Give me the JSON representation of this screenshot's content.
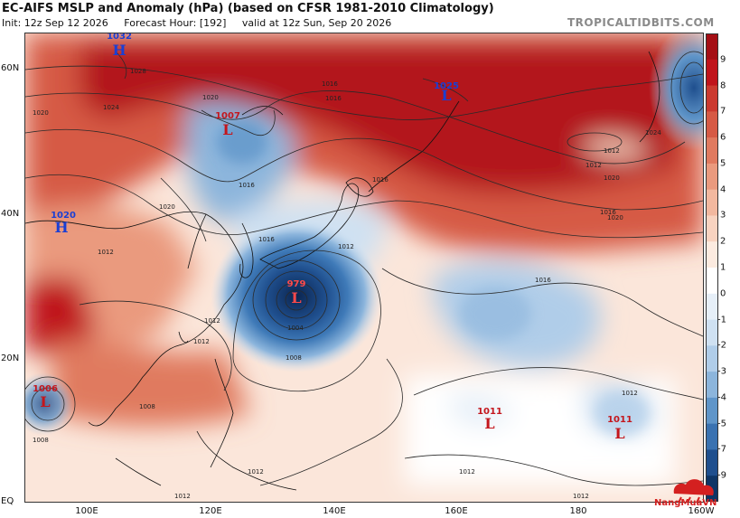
{
  "header": {
    "title": "EC-AIFS MSLP and Anomaly (hPa) (based on CFSR 1981-2010 Climatology)",
    "init": "Init: 12z Sep 12 2026",
    "forecast_hour": "Forecast Hour: [192]",
    "valid": "valid at 12z Sun, Sep 20 2026",
    "brand": "TROPICALTIDBITS.COM"
  },
  "map": {
    "lat_labels": [
      "60N",
      "40N",
      "20N",
      "EQ"
    ],
    "lon_labels": [
      "100E",
      "120E",
      "140E",
      "160E",
      "180",
      "160W"
    ],
    "pressure_systems": [
      {
        "type": "H",
        "value": "1032",
        "color": "#1a3fd4"
      },
      {
        "type": "L",
        "value": "1007",
        "color": "#c4161c"
      },
      {
        "type": "L",
        "value": "1025",
        "color": "#1a3fd4"
      },
      {
        "type": "H",
        "value": "1020",
        "color": "#1a3fd4"
      },
      {
        "type": "L",
        "value": "979",
        "color": "#c4161c"
      },
      {
        "type": "L",
        "value": "1006",
        "color": "#c4161c"
      },
      {
        "type": "L",
        "value": "1011",
        "color": "#c4161c"
      },
      {
        "type": "L",
        "value": "1011",
        "color": "#c4161c"
      }
    ],
    "isobar_labels": [
      "1028",
      "1024",
      "1020",
      "1016",
      "1020",
      "1016",
      "1012",
      "1016",
      "1012",
      "1020",
      "1024",
      "1012",
      "1016",
      "1016",
      "1012",
      "1004",
      "1008",
      "1012",
      "1008",
      "1008",
      "1012",
      "1012",
      "1012",
      "1012",
      "1016",
      "1012",
      "1012",
      "1020",
      "1020",
      "1016"
    ]
  },
  "colorbar": {
    "labels": [
      "9",
      "8",
      "7",
      "6",
      "5",
      "4",
      "3",
      "2",
      "1",
      "0",
      "-1",
      "-2",
      "-3",
      "-4",
      "-5",
      "-7",
      "-9"
    ],
    "colors": [
      "#a50f15",
      "#c0141b",
      "#cb3a2f",
      "#d65a45",
      "#e07a5f",
      "#ea9a7e",
      "#f2b89f",
      "#f8d3c0",
      "#fcebe0",
      "#ffffff",
      "#e6eff8",
      "#cfe1f2",
      "#b0cde9",
      "#8cb5dc",
      "#5f95c9",
      "#3a72b1",
      "#1f4f8e",
      "#0e3566"
    ]
  },
  "watermark": {
    "text": "NangMuaVN"
  }
}
